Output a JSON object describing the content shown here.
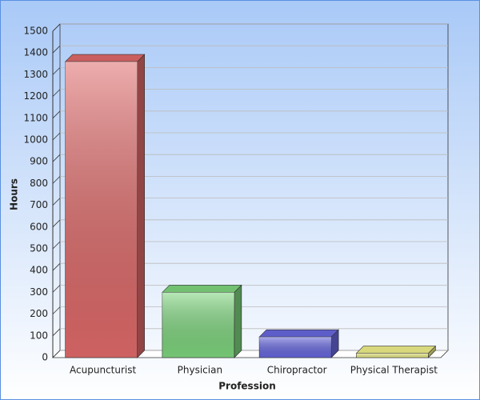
{
  "chart_data": {
    "type": "bar",
    "x_label": "Profession",
    "y_label": "Hours",
    "categories": [
      "Acupuncturist",
      "Physician",
      "Chiropractor",
      "Physical Therapist"
    ],
    "values": [
      1360,
      300,
      95,
      20
    ],
    "colors": [
      "#e06a6a",
      "#7ed67e",
      "#6868e0",
      "#f0f08a"
    ],
    "ylim": [
      0,
      1500
    ],
    "yticks": [
      0,
      100,
      200,
      300,
      400,
      500,
      600,
      700,
      800,
      900,
      1000,
      1100,
      1200,
      1300,
      1400,
      1500
    ],
    "grid": true
  }
}
